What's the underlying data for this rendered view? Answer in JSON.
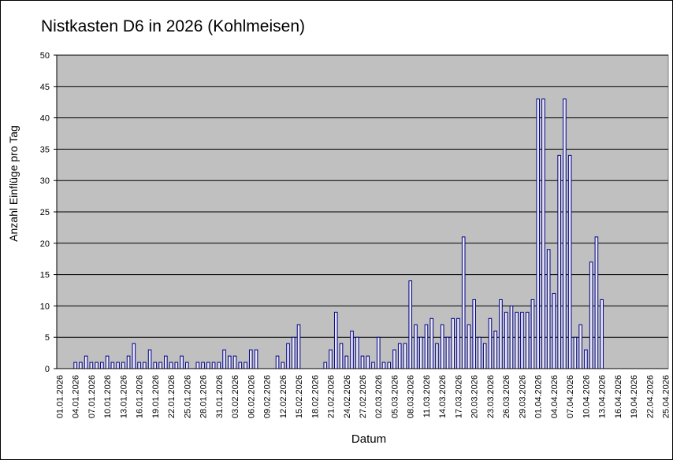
{
  "chart_data": {
    "type": "bar",
    "title": "Nistkasten  D6 in  2026 (Kohlmeisen)",
    "x_label": "Datum",
    "y_label": "Anzahl Einflüge pro Tag",
    "categories": [
      "01.01.2026",
      null,
      null,
      "04.01.2026",
      null,
      null,
      "07.01.2026",
      null,
      null,
      "10.01.2026",
      null,
      null,
      "13.01.2026",
      null,
      null,
      "16.01.2026",
      null,
      null,
      "19.01.2026",
      null,
      null,
      "22.01.2026",
      null,
      null,
      "25.01.2026",
      null,
      null,
      "28.01.2026",
      null,
      null,
      "31.01.2026",
      null,
      null,
      "03.02.2026",
      null,
      null,
      "06.02.2026",
      null,
      null,
      "09.02.2026",
      null,
      null,
      "12.02.2026",
      null,
      null,
      "15.02.2026",
      null,
      null,
      "18.02.2026",
      null,
      null,
      "21.02.2026",
      null,
      null,
      "24.02.2026",
      null,
      null,
      "27.02.2026",
      null,
      null,
      "02.03.2026",
      null,
      null,
      "05.03.2026",
      null,
      null,
      "08.03.2026",
      null,
      null,
      "11.03.2026",
      null,
      null,
      "14.03.2026",
      null,
      null,
      "17.03.2026",
      null,
      null,
      "20.03.2026",
      null,
      null,
      "23.03.2026",
      null,
      null,
      "26.03.2026",
      null,
      null,
      "29.03.2026",
      null,
      null,
      "01.04.2026",
      null,
      null,
      "04.04.2026",
      null,
      null,
      "07.04.2026",
      null,
      null,
      "10.04.2026",
      null,
      null,
      "13.04.2026",
      null,
      null,
      "16.04.2026",
      null,
      null,
      "19.04.2026",
      null,
      null,
      "22.04.2026",
      null,
      null,
      "25.04.2026"
    ],
    "values": [
      0,
      0,
      0,
      1,
      1,
      2,
      1,
      1,
      1,
      2,
      1,
      1,
      1,
      2,
      4,
      1,
      1,
      3,
      1,
      1,
      2,
      1,
      1,
      2,
      1,
      0,
      1,
      1,
      1,
      1,
      1,
      3,
      2,
      2,
      1,
      1,
      3,
      3,
      0,
      0,
      0,
      2,
      1,
      4,
      5,
      7,
      0,
      0,
      0,
      0,
      1,
      3,
      9,
      4,
      2,
      6,
      5,
      2,
      2,
      1,
      5,
      1,
      1,
      3,
      4,
      4,
      14,
      7,
      5,
      7,
      8,
      4,
      7,
      5,
      8,
      8,
      21,
      7,
      11,
      5,
      4,
      8,
      6,
      11,
      9,
      10,
      9,
      9,
      9,
      11,
      43,
      43,
      19,
      12,
      34,
      43,
      34,
      5,
      7,
      3,
      17,
      21,
      11,
      0,
      0,
      0,
      0,
      0,
      0,
      0,
      0,
      0,
      0,
      0,
      0
    ],
    "color": "#e8e8f8",
    "ylim": [
      0,
      50
    ],
    "yticks": [
      0,
      5,
      10,
      15,
      20,
      25,
      30,
      35,
      40,
      45,
      50
    ],
    "grid": true
  }
}
